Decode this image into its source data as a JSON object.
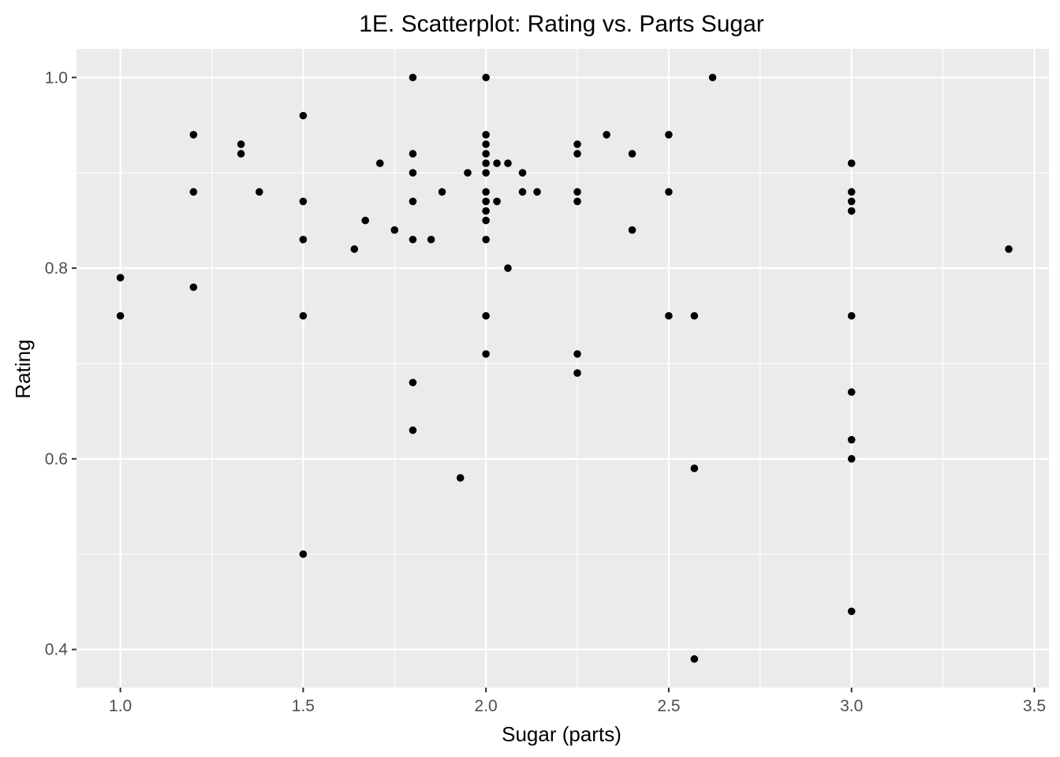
{
  "chart_data": {
    "type": "scatter",
    "title": "1E. Scatterplot: Rating vs. Parts Sugar",
    "xlabel": "Sugar (parts)",
    "ylabel": "Rating",
    "xlim": [
      0.88,
      3.54
    ],
    "ylim": [
      0.36,
      1.03
    ],
    "x_ticks": [
      1.0,
      1.5,
      2.0,
      2.5,
      3.0,
      3.5
    ],
    "x_tick_labels": [
      "1.0",
      "1.5",
      "2.0",
      "2.5",
      "3.0",
      "3.5"
    ],
    "y_ticks": [
      0.4,
      0.6,
      0.8,
      1.0
    ],
    "y_tick_labels": [
      "0.4",
      "0.6",
      "0.8",
      "1.0"
    ],
    "grid": true,
    "legend": "none",
    "colors": {
      "panel": "#ebebeb",
      "grid": "#ffffff",
      "point": "#000000"
    },
    "points": [
      {
        "x": 1.0,
        "y": 0.79
      },
      {
        "x": 1.0,
        "y": 0.75
      },
      {
        "x": 1.2,
        "y": 0.94
      },
      {
        "x": 1.2,
        "y": 0.88
      },
      {
        "x": 1.2,
        "y": 0.78
      },
      {
        "x": 1.33,
        "y": 0.93
      },
      {
        "x": 1.33,
        "y": 0.92
      },
      {
        "x": 1.38,
        "y": 0.88
      },
      {
        "x": 1.5,
        "y": 0.96
      },
      {
        "x": 1.5,
        "y": 0.87
      },
      {
        "x": 1.5,
        "y": 0.83
      },
      {
        "x": 1.5,
        "y": 0.75
      },
      {
        "x": 1.5,
        "y": 0.5
      },
      {
        "x": 1.64,
        "y": 0.82
      },
      {
        "x": 1.67,
        "y": 0.85
      },
      {
        "x": 1.71,
        "y": 0.91
      },
      {
        "x": 1.75,
        "y": 0.84
      },
      {
        "x": 1.8,
        "y": 1.0
      },
      {
        "x": 1.8,
        "y": 0.92
      },
      {
        "x": 1.8,
        "y": 0.9
      },
      {
        "x": 1.8,
        "y": 0.87
      },
      {
        "x": 1.8,
        "y": 0.83
      },
      {
        "x": 1.8,
        "y": 0.68
      },
      {
        "x": 1.8,
        "y": 0.63
      },
      {
        "x": 1.85,
        "y": 0.83
      },
      {
        "x": 1.88,
        "y": 0.88
      },
      {
        "x": 1.93,
        "y": 0.58
      },
      {
        "x": 1.95,
        "y": 0.9
      },
      {
        "x": 2.0,
        "y": 1.0
      },
      {
        "x": 2.0,
        "y": 0.94
      },
      {
        "x": 2.0,
        "y": 0.93
      },
      {
        "x": 2.0,
        "y": 0.92
      },
      {
        "x": 2.0,
        "y": 0.91
      },
      {
        "x": 2.0,
        "y": 0.9
      },
      {
        "x": 2.0,
        "y": 0.88
      },
      {
        "x": 2.0,
        "y": 0.87
      },
      {
        "x": 2.0,
        "y": 0.86
      },
      {
        "x": 2.0,
        "y": 0.85
      },
      {
        "x": 2.0,
        "y": 0.83
      },
      {
        "x": 2.0,
        "y": 0.75
      },
      {
        "x": 2.0,
        "y": 0.71
      },
      {
        "x": 2.03,
        "y": 0.91
      },
      {
        "x": 2.03,
        "y": 0.87
      },
      {
        "x": 2.06,
        "y": 0.91
      },
      {
        "x": 2.06,
        "y": 0.8
      },
      {
        "x": 2.1,
        "y": 0.9
      },
      {
        "x": 2.1,
        "y": 0.88
      },
      {
        "x": 2.14,
        "y": 0.88
      },
      {
        "x": 2.25,
        "y": 0.93
      },
      {
        "x": 2.25,
        "y": 0.92
      },
      {
        "x": 2.25,
        "y": 0.88
      },
      {
        "x": 2.25,
        "y": 0.87
      },
      {
        "x": 2.25,
        "y": 0.71
      },
      {
        "x": 2.25,
        "y": 0.69
      },
      {
        "x": 2.33,
        "y": 0.94
      },
      {
        "x": 2.4,
        "y": 0.92
      },
      {
        "x": 2.4,
        "y": 0.84
      },
      {
        "x": 2.5,
        "y": 0.94
      },
      {
        "x": 2.5,
        "y": 0.88
      },
      {
        "x": 2.5,
        "y": 0.75
      },
      {
        "x": 2.57,
        "y": 0.75
      },
      {
        "x": 2.57,
        "y": 0.59
      },
      {
        "x": 2.57,
        "y": 0.39
      },
      {
        "x": 2.62,
        "y": 1.0
      },
      {
        "x": 3.0,
        "y": 0.91
      },
      {
        "x": 3.0,
        "y": 0.88
      },
      {
        "x": 3.0,
        "y": 0.87
      },
      {
        "x": 3.0,
        "y": 0.86
      },
      {
        "x": 3.0,
        "y": 0.75
      },
      {
        "x": 3.0,
        "y": 0.67
      },
      {
        "x": 3.0,
        "y": 0.62
      },
      {
        "x": 3.0,
        "y": 0.6
      },
      {
        "x": 3.0,
        "y": 0.44
      },
      {
        "x": 3.43,
        "y": 0.82
      }
    ]
  }
}
